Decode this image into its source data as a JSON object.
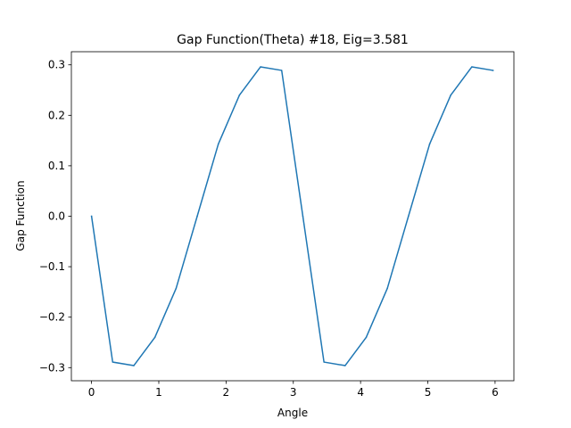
{
  "chart_data": {
    "type": "line",
    "title": "Gap Function(Theta) #18, Eig=3.581",
    "xlabel": "Angle",
    "ylabel": "Gap Function",
    "xlim": [
      -0.3,
      6.28
    ],
    "ylim": [
      -0.326,
      0.326
    ],
    "xticks": [
      0,
      1,
      2,
      3,
      4,
      5,
      6
    ],
    "yticks": [
      -0.3,
      -0.2,
      -0.1,
      0.0,
      0.1,
      0.2,
      0.3
    ],
    "xtick_labels": [
      "0",
      "1",
      "2",
      "3",
      "4",
      "5",
      "6"
    ],
    "ytick_labels": [
      "−0.3",
      "−0.2",
      "−0.1",
      "0.0",
      "0.1",
      "0.2",
      "0.3"
    ],
    "grid": false,
    "series": [
      {
        "color": "#1f77b4",
        "x": [
          0.0,
          0.314,
          0.628,
          0.942,
          1.257,
          1.571,
          1.885,
          2.199,
          2.513,
          2.827,
          3.142,
          3.456,
          3.77,
          4.084,
          4.398,
          4.712,
          5.027,
          5.341,
          5.655,
          5.969
        ],
        "y": [
          0.0,
          -0.289,
          -0.296,
          -0.24,
          -0.143,
          0.0,
          0.143,
          0.24,
          0.296,
          0.289,
          0.0,
          -0.289,
          -0.296,
          -0.24,
          -0.143,
          0.0,
          0.143,
          0.24,
          0.296,
          0.289
        ]
      }
    ]
  }
}
